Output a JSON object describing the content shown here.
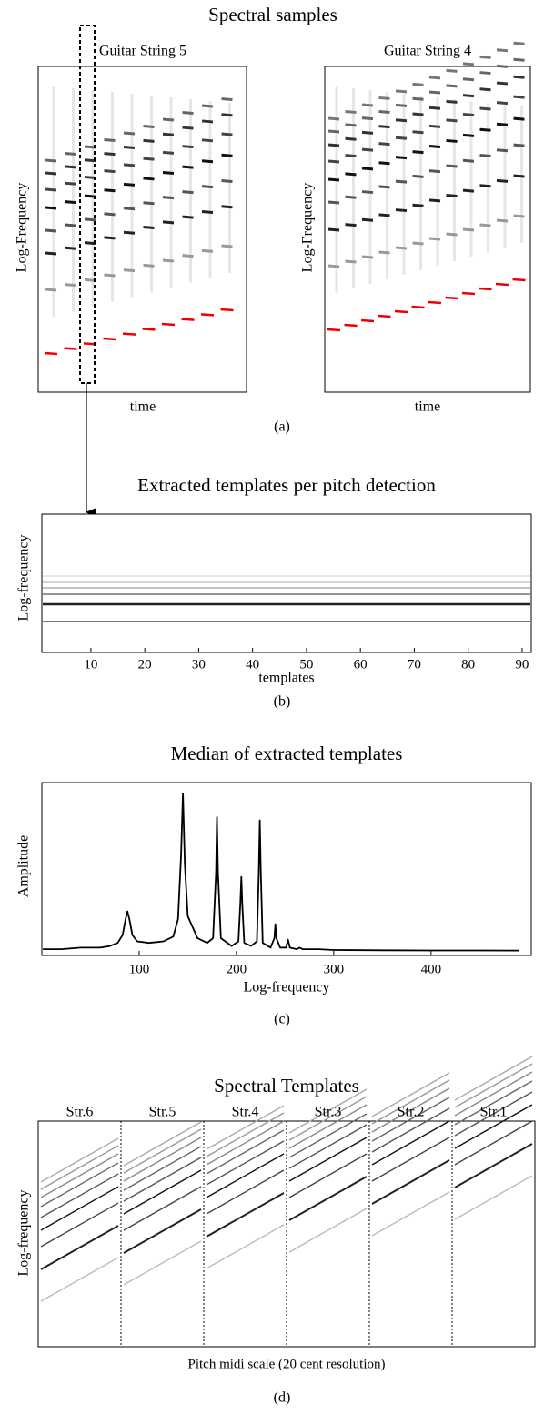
{
  "title": "Spectral samples",
  "panel_a": {
    "left_title": "Guitar String 5",
    "right_title": "Guitar String 4",
    "ylabel": "Log-Frequency",
    "xlabel": "time",
    "caption": "(a)"
  },
  "panel_b": {
    "title": "Extracted templates per pitch detection",
    "ylabel": "Log-frequency",
    "xlabel": "templates",
    "caption": "(b)",
    "xlim": [
      0.9,
      91.7
    ],
    "xticks": [
      10,
      20,
      30,
      40,
      50,
      60,
      70,
      80,
      90
    ]
  },
  "panel_c": {
    "type": "line",
    "title": "Median of extracted templates",
    "ylabel": "Amplitude",
    "xlabel": "Log-frequency",
    "caption": "(c)",
    "xlim": [
      0,
      503
    ],
    "ylim": [
      -0.03,
      1.07
    ],
    "xticks": [
      100,
      200,
      300,
      400
    ],
    "color": "#000000",
    "x": [
      1,
      20,
      40,
      60,
      70,
      78,
      83,
      86,
      88,
      90,
      93,
      98,
      110,
      125,
      135,
      140,
      143,
      145,
      147,
      150,
      160,
      170,
      176,
      179,
      180,
      181,
      184,
      195,
      202,
      204,
      205,
      206,
      208,
      215,
      221,
      223,
      224,
      225,
      227,
      235,
      239,
      240,
      241,
      245,
      251,
      253,
      255,
      262,
      265,
      268,
      275,
      285,
      300,
      350,
      400,
      450,
      490
    ],
    "values": [
      0.01,
      0.01,
      0.02,
      0.02,
      0.03,
      0.05,
      0.1,
      0.2,
      0.25,
      0.2,
      0.1,
      0.06,
      0.05,
      0.06,
      0.09,
      0.2,
      0.6,
      1.0,
      0.55,
      0.22,
      0.08,
      0.05,
      0.08,
      0.5,
      0.85,
      0.5,
      0.08,
      0.03,
      0.06,
      0.3,
      0.47,
      0.3,
      0.05,
      0.03,
      0.06,
      0.5,
      0.83,
      0.5,
      0.05,
      0.02,
      0.08,
      0.17,
      0.08,
      0.02,
      0.02,
      0.07,
      0.02,
      0.01,
      0.02,
      0.01,
      0.01,
      0.01,
      0.005,
      0.003,
      0.002,
      0.002,
      0.001
    ]
  },
  "panel_d": {
    "title": "Spectral Templates",
    "strings": [
      "Str.6",
      "Str.5",
      "Str.4",
      "Str.3",
      "Str.2",
      "Str.1"
    ],
    "ylabel": "Log-frequency",
    "xlabel": "Pitch midi scale (20 cent resolution)",
    "caption": "(d)"
  }
}
